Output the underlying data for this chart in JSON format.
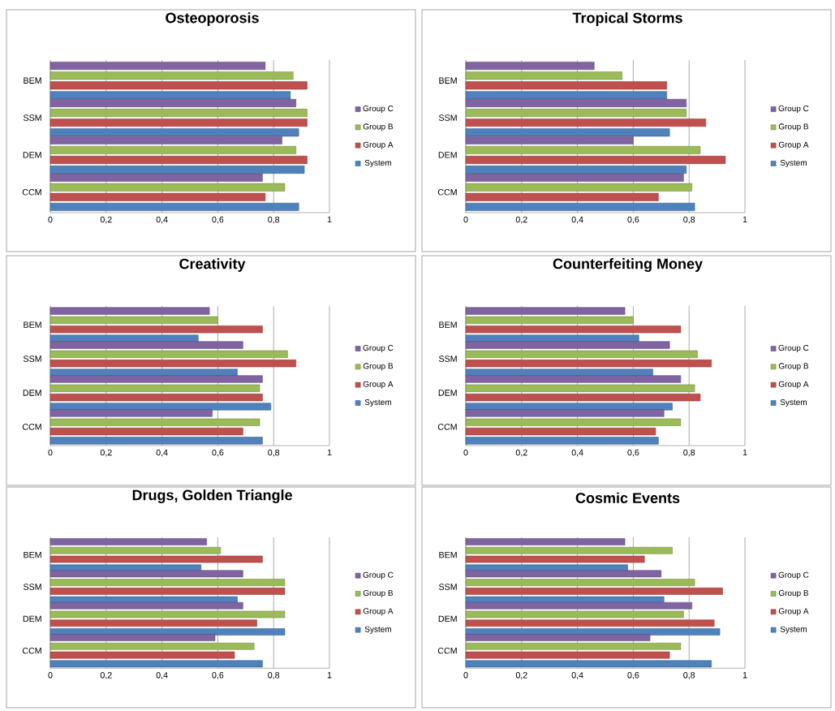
{
  "chart_data": [
    {
      "type": "bar",
      "orientation": "horizontal",
      "title": "Osteoporosis",
      "categories": [
        "BEM",
        "SSM",
        "DEM",
        "CCM"
      ],
      "xlim": [
        0,
        1
      ],
      "xticks": [
        0,
        {
          "value": 0.2,
          "label": "0,2"
        },
        {
          "value": 0.4,
          "label": "0,4"
        },
        {
          "value": 0.6,
          "label": "0,6"
        },
        {
          "value": 0.8,
          "label": "0,8"
        },
        1
      ],
      "grid": "x",
      "legend": "right",
      "series": [
        {
          "name": "System",
          "color": "#4f81bd",
          "values": [
            0.86,
            0.89,
            0.91,
            0.89
          ]
        },
        {
          "name": "Group A",
          "color": "#c0504d",
          "values": [
            0.92,
            0.92,
            0.92,
            0.77
          ]
        },
        {
          "name": "Group B",
          "color": "#9bbb59",
          "values": [
            0.87,
            0.92,
            0.88,
            0.84
          ]
        },
        {
          "name": "Group C",
          "color": "#8064a2",
          "values": [
            0.77,
            0.88,
            0.83,
            0.76
          ]
        }
      ]
    },
    {
      "type": "bar",
      "orientation": "horizontal",
      "title": "Tropical Storms",
      "categories": [
        "BEM",
        "SSM",
        "DEM",
        "CCM"
      ],
      "xlim": [
        0,
        1
      ],
      "xticks": [
        0,
        {
          "value": 0.2,
          "label": "0,2"
        },
        {
          "value": 0.4,
          "label": "0,4"
        },
        {
          "value": 0.6,
          "label": "0,6"
        },
        {
          "value": 0.8,
          "label": "0,8"
        },
        1
      ],
      "grid": "x",
      "legend": "right",
      "series": [
        {
          "name": "System",
          "color": "#4f81bd",
          "values": [
            0.72,
            0.73,
            0.79,
            0.82
          ]
        },
        {
          "name": "Group A",
          "color": "#c0504d",
          "values": [
            0.72,
            0.86,
            0.93,
            0.69
          ]
        },
        {
          "name": "Group B",
          "color": "#9bbb59",
          "values": [
            0.56,
            0.79,
            0.84,
            0.81
          ]
        },
        {
          "name": "Group C",
          "color": "#8064a2",
          "values": [
            0.46,
            0.79,
            0.6,
            0.78
          ]
        }
      ]
    },
    {
      "type": "bar",
      "orientation": "horizontal",
      "title": "Creativity",
      "categories": [
        "BEM",
        "SSM",
        "DEM",
        "CCM"
      ],
      "xlim": [
        0,
        1
      ],
      "xticks": [
        0,
        {
          "value": 0.2,
          "label": "0,2"
        },
        {
          "value": 0.4,
          "label": "0,4"
        },
        {
          "value": 0.6,
          "label": "0,6"
        },
        {
          "value": 0.8,
          "label": "0,8"
        },
        1
      ],
      "grid": "x",
      "legend": "right",
      "series": [
        {
          "name": "System",
          "color": "#4f81bd",
          "values": [
            0.53,
            0.67,
            0.79,
            0.76
          ]
        },
        {
          "name": "Group A",
          "color": "#c0504d",
          "values": [
            0.76,
            0.88,
            0.76,
            0.69
          ]
        },
        {
          "name": "Group B",
          "color": "#9bbb59",
          "values": [
            0.6,
            0.85,
            0.75,
            0.75
          ]
        },
        {
          "name": "Group C",
          "color": "#8064a2",
          "values": [
            0.57,
            0.69,
            0.76,
            0.58
          ]
        }
      ]
    },
    {
      "type": "bar",
      "orientation": "horizontal",
      "title": "Counterfeiting Money",
      "categories": [
        "BEM",
        "SSM",
        "DEM",
        "CCM"
      ],
      "xlim": [
        0,
        1
      ],
      "xticks": [
        0,
        {
          "value": 0.2,
          "label": "0,2"
        },
        {
          "value": 0.4,
          "label": "0,4"
        },
        {
          "value": 0.6,
          "label": "0,6"
        },
        {
          "value": 0.8,
          "label": "0,8"
        },
        1
      ],
      "grid": "x",
      "legend": "right",
      "series": [
        {
          "name": "System",
          "color": "#4f81bd",
          "values": [
            0.62,
            0.67,
            0.74,
            0.69
          ]
        },
        {
          "name": "Group A",
          "color": "#c0504d",
          "values": [
            0.77,
            0.88,
            0.84,
            0.68
          ]
        },
        {
          "name": "Group B",
          "color": "#9bbb59",
          "values": [
            0.6,
            0.83,
            0.82,
            0.77
          ]
        },
        {
          "name": "Group C",
          "color": "#8064a2",
          "values": [
            0.57,
            0.73,
            0.77,
            0.71
          ]
        }
      ]
    },
    {
      "type": "bar",
      "orientation": "horizontal",
      "title": "Drugs, Golden Triangle",
      "categories": [
        "BEM",
        "SSM",
        "DEM",
        "CCM"
      ],
      "xlim": [
        0,
        1
      ],
      "xticks": [
        0,
        {
          "value": 0.2,
          "label": "0,2"
        },
        {
          "value": 0.4,
          "label": "0,4"
        },
        {
          "value": 0.6,
          "label": "0,6"
        },
        {
          "value": 0.8,
          "label": "0,8"
        },
        1
      ],
      "grid": "x",
      "legend": "right",
      "series": [
        {
          "name": "System",
          "color": "#4f81bd",
          "values": [
            0.54,
            0.67,
            0.84,
            0.76
          ]
        },
        {
          "name": "Group A",
          "color": "#c0504d",
          "values": [
            0.76,
            0.84,
            0.74,
            0.66
          ]
        },
        {
          "name": "Group B",
          "color": "#9bbb59",
          "values": [
            0.61,
            0.84,
            0.84,
            0.73
          ]
        },
        {
          "name": "Group C",
          "color": "#8064a2",
          "values": [
            0.56,
            0.69,
            0.69,
            0.59
          ]
        }
      ]
    },
    {
      "type": "bar",
      "orientation": "horizontal",
      "title": "Cosmic Events",
      "categories": [
        "BEM",
        "SSM",
        "DEM",
        "CCM"
      ],
      "xlim": [
        0,
        1
      ],
      "xticks": [
        0,
        {
          "value": 0.2,
          "label": "0,2"
        },
        {
          "value": 0.4,
          "label": "0,4"
        },
        {
          "value": 0.6,
          "label": "0,6"
        },
        {
          "value": 0.8,
          "label": "0,8"
        },
        1
      ],
      "grid": "x",
      "legend": "right",
      "series": [
        {
          "name": "System",
          "color": "#4f81bd",
          "values": [
            0.58,
            0.71,
            0.91,
            0.88
          ]
        },
        {
          "name": "Group A",
          "color": "#c0504d",
          "values": [
            0.64,
            0.92,
            0.89,
            0.73
          ]
        },
        {
          "name": "Group B",
          "color": "#9bbb59",
          "values": [
            0.74,
            0.82,
            0.78,
            0.77
          ]
        },
        {
          "name": "Group C",
          "color": "#8064a2",
          "values": [
            0.57,
            0.7,
            0.81,
            0.66
          ]
        }
      ]
    }
  ]
}
